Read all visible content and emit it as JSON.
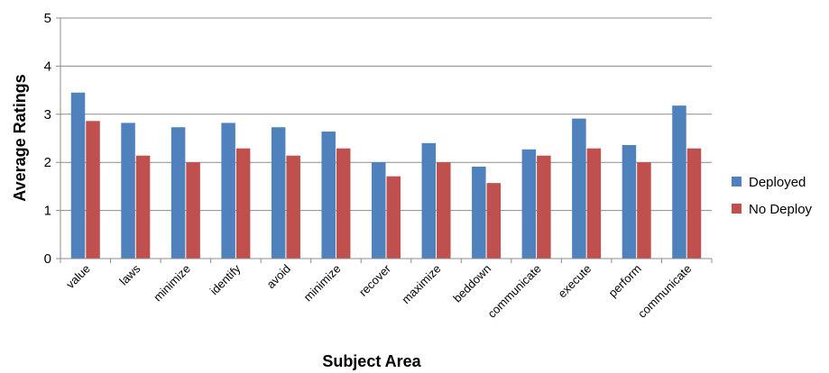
{
  "chart_data": {
    "type": "bar",
    "categories": [
      "value",
      "laws",
      "minimize",
      "identify",
      "avoid",
      "minimize",
      "recover",
      "maximize",
      "beddown",
      "communicate",
      "execute",
      "perform",
      "communicate"
    ],
    "series": [
      {
        "name": "Deployed",
        "color": "#4f81bd",
        "values": [
          3.45,
          2.82,
          2.73,
          2.82,
          2.73,
          2.64,
          2.0,
          2.4,
          1.91,
          2.27,
          2.91,
          2.36,
          3.18
        ]
      },
      {
        "name": "No Deploy",
        "color": "#c0504d",
        "values": [
          2.86,
          2.14,
          2.0,
          2.29,
          2.14,
          2.29,
          1.71,
          2.0,
          1.57,
          2.14,
          2.29,
          2.0,
          2.29
        ]
      }
    ],
    "title": "",
    "xlabel": "Subject Area",
    "ylabel": "Average Ratings",
    "ylim": [
      0,
      5
    ],
    "yticks": [
      "0",
      "1",
      "2",
      "3",
      "4",
      "5"
    ],
    "grid": true,
    "legend_position": "right"
  }
}
